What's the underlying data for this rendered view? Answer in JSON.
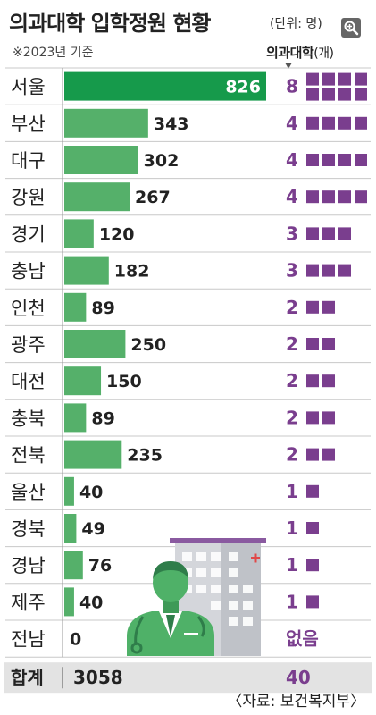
{
  "header": {
    "title": "의과대학 입학정원 현황",
    "unit": "(단위: 명)",
    "note": "※2023년 기준",
    "column_label": "의과대학",
    "column_unit": "(개)"
  },
  "source": "〈자료: 보건복지부〉",
  "icons": {
    "zoom": "magnifier-icon",
    "illustration": "doctor-hospital-illustration"
  },
  "colors": {
    "bar": "#55b06a",
    "bar_highlight": "#169a4b",
    "school": "#7a3e8e",
    "total_bg": "#e3e3e3",
    "grid": "#c8c8c8"
  },
  "chart_data": {
    "type": "bar",
    "orientation": "horizontal",
    "categories": [
      "서울",
      "부산",
      "대구",
      "강원",
      "경기",
      "충남",
      "인천",
      "광주",
      "대전",
      "충북",
      "전북",
      "울산",
      "경북",
      "경남",
      "제주",
      "전남"
    ],
    "series": [
      {
        "values": [
          826,
          343,
          302,
          267,
          120,
          182,
          89,
          250,
          150,
          89,
          235,
          40,
          49,
          76,
          40,
          0
        ]
      },
      {
        "values": [
          8,
          4,
          4,
          4,
          3,
          3,
          2,
          2,
          2,
          2,
          2,
          1,
          1,
          1,
          1,
          0
        ]
      }
    ],
    "school_labels": [
      "8",
      "4",
      "4",
      "4",
      "3",
      "3",
      "2",
      "2",
      "2",
      "2",
      "2",
      "1",
      "1",
      "1",
      "1",
      "없음"
    ],
    "value_labels": [
      "826",
      "343",
      "302",
      "267",
      "120",
      "182",
      "89",
      "250",
      "150",
      "89",
      "235",
      "40",
      "49",
      "76",
      "40",
      "0"
    ],
    "total": {
      "label": "합계",
      "value": "3058",
      "schools": "40"
    }
  }
}
